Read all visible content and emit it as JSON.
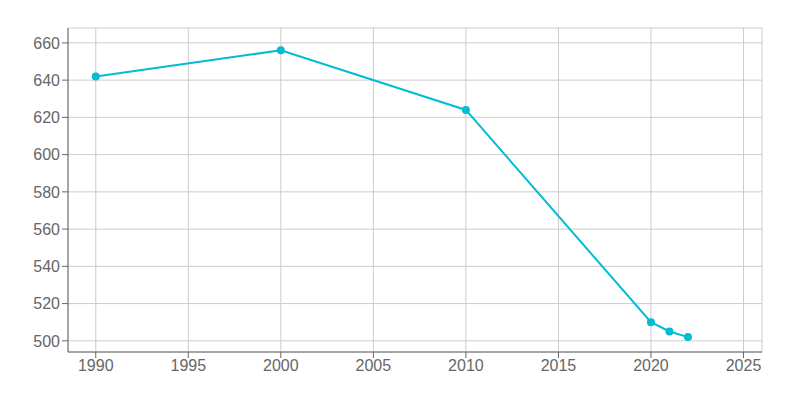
{
  "chart_data": {
    "type": "line",
    "x": [
      1990,
      2000,
      2010,
      2020,
      2021,
      2022
    ],
    "values": [
      642,
      656,
      624,
      510,
      505,
      502
    ],
    "color": "#00BCD4",
    "marker": "circle",
    "xlim": [
      1988.5,
      2026
    ],
    "ylim": [
      494,
      668
    ],
    "xticks": [
      1990,
      1995,
      2000,
      2005,
      2010,
      2015,
      2020,
      2025
    ],
    "yticks": [
      500,
      520,
      540,
      560,
      580,
      600,
      620,
      640,
      660
    ],
    "grid": true
  }
}
